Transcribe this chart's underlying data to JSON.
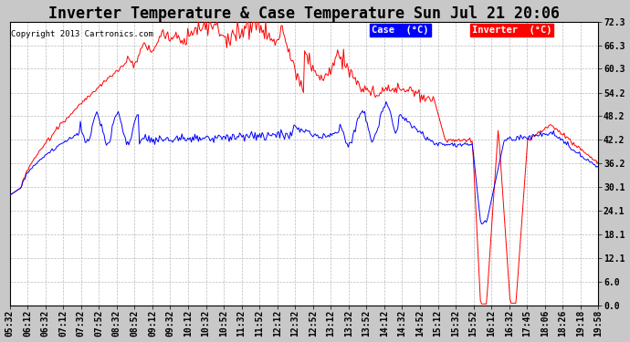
{
  "title": "Inverter Temperature & Case Temperature Sun Jul 21 20:06",
  "copyright": "Copyright 2013 Cartronics.com",
  "legend_case_label": "Case  (°C)",
  "legend_inverter_label": "Inverter  (°C)",
  "case_color": "#0000ff",
  "inverter_color": "#ff0000",
  "bg_color": "#c8c8c8",
  "plot_bg_color": "#ffffff",
  "y_ticks": [
    0.0,
    6.0,
    12.1,
    18.1,
    24.1,
    30.1,
    36.2,
    42.2,
    48.2,
    54.2,
    60.3,
    66.3,
    72.3
  ],
  "ylim": [
    0.0,
    72.3
  ],
  "grid_color": "#aaaaaa",
  "title_fontsize": 12,
  "tick_fontsize": 7,
  "x_labels": [
    "05:32",
    "06:12",
    "06:32",
    "07:12",
    "07:32",
    "07:52",
    "08:32",
    "08:52",
    "09:12",
    "09:32",
    "10:12",
    "10:32",
    "10:52",
    "11:32",
    "11:52",
    "12:12",
    "12:32",
    "12:52",
    "13:12",
    "13:32",
    "13:52",
    "14:12",
    "14:32",
    "14:52",
    "15:12",
    "15:32",
    "15:52",
    "16:12",
    "16:32",
    "17:45",
    "18:06",
    "18:26",
    "19:18",
    "19:58"
  ]
}
